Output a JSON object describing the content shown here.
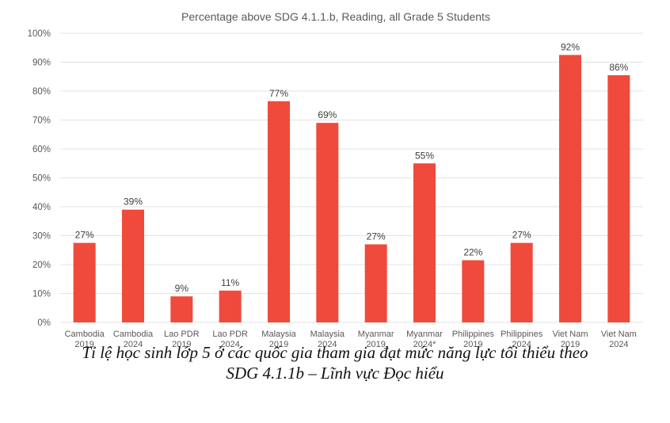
{
  "chart_data": {
    "type": "bar",
    "title": "Percentage above SDG 4.1.1.b, Reading, all Grade 5 Students",
    "categories": [
      [
        "Cambodia",
        "2019"
      ],
      [
        "Cambodia",
        "2024"
      ],
      [
        "Lao PDR",
        "2019"
      ],
      [
        "Lao PDR",
        "2024"
      ],
      [
        "Malaysia",
        "2019"
      ],
      [
        "Malaysia",
        "2024"
      ],
      [
        "Myanmar",
        "2019"
      ],
      [
        "Myanmar",
        "2024*"
      ],
      [
        "Philippines",
        "2019"
      ],
      [
        "Philippines",
        "2024"
      ],
      [
        "Viet Nam",
        "2019"
      ],
      [
        "Viet Nam",
        "2024"
      ]
    ],
    "values": [
      27.5,
      39,
      9,
      11,
      76.5,
      69,
      27,
      55,
      21.5,
      27.5,
      92.5,
      85.5
    ],
    "data_labels": [
      "27%",
      "39%",
      "9%",
      "11%",
      "77%",
      "69%",
      "27%",
      "55%",
      "22%",
      "27%",
      "92%",
      "86%"
    ],
    "ylim": [
      0,
      100
    ],
    "yticks": [
      0,
      10,
      20,
      30,
      40,
      50,
      60,
      70,
      80,
      90,
      100
    ],
    "ytick_labels": [
      "0%",
      "10%",
      "20%",
      "30%",
      "40%",
      "50%",
      "60%",
      "70%",
      "80%",
      "90%",
      "100%"
    ],
    "xlabel": "",
    "ylabel": "",
    "grid": true,
    "legend": "none",
    "bar_color": "#ef4a3c"
  },
  "caption": {
    "line1": "Tỉ lệ học sinh lớp 5 ở các quốc gia tham gia đạt mức năng lực tối thiểu theo",
    "line2": "SDG 4.1.1b – Lĩnh vực Đọc hiểu"
  }
}
